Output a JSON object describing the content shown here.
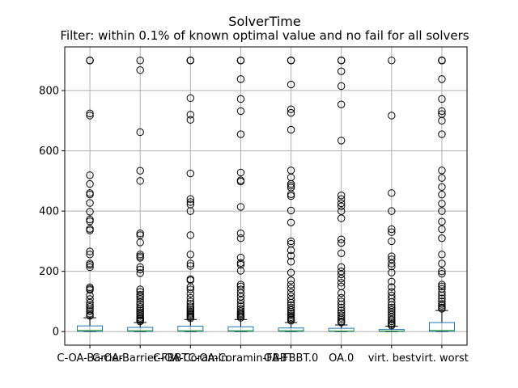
{
  "chart_data": {
    "type": "box",
    "title": "SolverTime",
    "subtitle": "Filter: within 0.1% of known optimal value and no fail for all solvers",
    "xlabel": "",
    "ylabel": "",
    "ylim": [
      -45,
      945
    ],
    "yticks": [
      0,
      200,
      400,
      600,
      800
    ],
    "grid": true,
    "box_color": "#1f77b4",
    "median_color": "#2ca02c",
    "categories": [
      "C-OA-Barrier",
      "C-OA-Barrier-FBBT",
      "C-OA-Coramin",
      "C-OA-Coramin-FBBT",
      "OA-FBBT.0",
      "OA.0",
      "virt. best",
      "virt. worst"
    ],
    "series": [
      {
        "q1": 1,
        "median": 4,
        "q3": 19,
        "whisker_low": 0,
        "whisker_high": 46,
        "outliers": [
          900,
          900,
          900,
          900,
          724,
          717,
          519,
          490,
          460,
          455,
          427,
          398,
          372,
          366,
          341,
          336,
          266,
          256,
          226,
          221,
          214,
          147,
          142,
          138,
          120,
          108,
          96,
          88,
          82,
          74,
          68,
          60,
          55,
          52
        ]
      },
      {
        "q1": 1,
        "median": 3,
        "q3": 14,
        "whisker_low": 0,
        "whisker_high": 30,
        "outliers": [
          900,
          868,
          662,
          534,
          500,
          326,
          320,
          296,
          256,
          250,
          245,
          214,
          206,
          194,
          140,
          132,
          122,
          116,
          108,
          98,
          90,
          82,
          76,
          70,
          64,
          58,
          52,
          46,
          42,
          38,
          34
        ]
      },
      {
        "q1": 1,
        "median": 3,
        "q3": 18,
        "whisker_low": 0,
        "whisker_high": 40,
        "outliers": [
          900,
          900,
          900,
          900,
          900,
          775,
          720,
          703,
          525,
          440,
          430,
          422,
          400,
          320,
          256,
          226,
          218,
          174,
          170,
          148,
          140,
          126,
          112,
          100,
          92,
          84,
          78,
          72,
          66,
          60,
          56,
          52,
          48,
          44
        ]
      },
      {
        "q1": 1,
        "median": 3,
        "q3": 16,
        "whisker_low": 0,
        "whisker_high": 40,
        "outliers": [
          900,
          900,
          900,
          900,
          838,
          772,
          732,
          655,
          528,
          502,
          498,
          414,
          326,
          310,
          246,
          228,
          222,
          202,
          156,
          150,
          140,
          128,
          116,
          104,
          92,
          84,
          76,
          68,
          62,
          58,
          54,
          50,
          46
        ]
      },
      {
        "q1": 1,
        "median": 3,
        "q3": 12,
        "whisker_low": 0,
        "whisker_high": 30,
        "outliers": [
          900,
          900,
          900,
          900,
          820,
          738,
          726,
          670,
          535,
          512,
          490,
          484,
          478,
          456,
          450,
          402,
          362,
          300,
          292,
          270,
          252,
          232,
          196,
          170,
          156,
          144,
          130,
          118,
          106,
          96,
          88,
          80,
          72,
          66,
          60,
          54,
          48,
          44,
          40,
          36
        ]
      },
      {
        "q1": 1,
        "median": 2,
        "q3": 11,
        "whisker_low": 0,
        "whisker_high": 22,
        "outliers": [
          900,
          900,
          900,
          864,
          815,
          754,
          634,
          452,
          440,
          426,
          416,
          400,
          376,
          306,
          294,
          260,
          214,
          200,
          190,
          176,
          162,
          150,
          128,
          112,
          100,
          90,
          80,
          70,
          62,
          54,
          46,
          40,
          34,
          30
        ]
      },
      {
        "q1": 1,
        "median": 2,
        "q3": 7,
        "whisker_low": 0,
        "whisker_high": 18,
        "outliers": [
          900,
          717,
          460,
          400,
          340,
          330,
          300,
          250,
          240,
          226,
          216,
          196,
          166,
          148,
          132,
          120,
          110,
          98,
          88,
          80,
          72,
          64,
          56,
          48,
          40,
          34,
          28,
          24,
          20
        ]
      },
      {
        "q1": 1,
        "median": 4,
        "q3": 30,
        "whisker_low": 0,
        "whisker_high": 70,
        "outliers": [
          900,
          900,
          900,
          900,
          900,
          900,
          838,
          772,
          732,
          722,
          700,
          655,
          535,
          510,
          480,
          455,
          425,
          400,
          365,
          340,
          310,
          256,
          226,
          200,
          192,
          156,
          150,
          142,
          130,
          120,
          110,
          100,
          92,
          86,
          80,
          76
        ]
      }
    ]
  }
}
